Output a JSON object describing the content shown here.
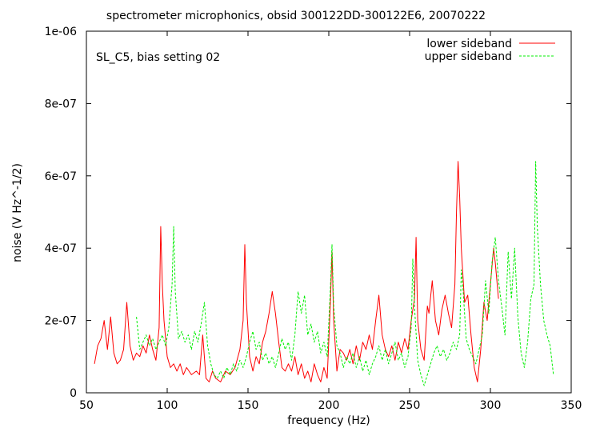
{
  "chart_data": {
    "type": "line",
    "title": "spectrometer microphonics, obsid 300122DD-300122E6, 20070222",
    "annotation": "SL_C5, bias setting 02",
    "xlabel": "frequency (Hz)",
    "ylabel": "noise (V Hz^-1/2)",
    "xlim": [
      50,
      350
    ],
    "ylim": [
      0,
      1e-06
    ],
    "x_ticks": [
      {
        "value": 50,
        "label": "50"
      },
      {
        "value": 100,
        "label": "100"
      },
      {
        "value": 150,
        "label": "150"
      },
      {
        "value": 200,
        "label": "200"
      },
      {
        "value": 250,
        "label": "250"
      },
      {
        "value": 300,
        "label": "300"
      },
      {
        "value": 350,
        "label": "350"
      }
    ],
    "y_ticks": [
      {
        "value": 0,
        "label": "0"
      },
      {
        "value": 2e-07,
        "label": "2e-07"
      },
      {
        "value": 4e-07,
        "label": "4e-07"
      },
      {
        "value": 6e-07,
        "label": "6e-07"
      },
      {
        "value": 8e-07,
        "label": "8e-07"
      },
      {
        "value": 1e-06,
        "label": "1e-06"
      }
    ],
    "grid": false,
    "legend_position": "top-right",
    "series": [
      {
        "name": "lower sideband",
        "color": "#ff0000",
        "dash": "solid",
        "points": [
          [
            55,
            8e-08
          ],
          [
            57,
            1.3e-07
          ],
          [
            59,
            1.5e-07
          ],
          [
            61,
            2e-07
          ],
          [
            63,
            1.2e-07
          ],
          [
            65,
            2.1e-07
          ],
          [
            67,
            1.1e-07
          ],
          [
            69,
            8e-08
          ],
          [
            71,
            9e-08
          ],
          [
            73,
            1.2e-07
          ],
          [
            75,
            2.5e-07
          ],
          [
            77,
            1.3e-07
          ],
          [
            79,
            9e-08
          ],
          [
            81,
            1.1e-07
          ],
          [
            83,
            1e-07
          ],
          [
            85,
            1.3e-07
          ],
          [
            87,
            1.1e-07
          ],
          [
            89,
            1.6e-07
          ],
          [
            91,
            1.2e-07
          ],
          [
            93,
            9e-08
          ],
          [
            95,
            1.8e-07
          ],
          [
            96,
            4.6e-07
          ],
          [
            97,
            3e-07
          ],
          [
            98,
            2e-07
          ],
          [
            100,
            1e-07
          ],
          [
            102,
            7e-08
          ],
          [
            104,
            8e-08
          ],
          [
            106,
            6e-08
          ],
          [
            108,
            8e-08
          ],
          [
            110,
            5e-08
          ],
          [
            112,
            7e-08
          ],
          [
            115,
            5e-08
          ],
          [
            118,
            6e-08
          ],
          [
            120,
            5e-08
          ],
          [
            122,
            1.6e-07
          ],
          [
            124,
            4e-08
          ],
          [
            126,
            3e-08
          ],
          [
            128,
            6e-08
          ],
          [
            130,
            4e-08
          ],
          [
            133,
            3e-08
          ],
          [
            136,
            6e-08
          ],
          [
            139,
            5e-08
          ],
          [
            142,
            7e-08
          ],
          [
            145,
            1.2e-07
          ],
          [
            147,
            2e-07
          ],
          [
            148,
            4.1e-07
          ],
          [
            149,
            2.5e-07
          ],
          [
            151,
            1e-07
          ],
          [
            153,
            6e-08
          ],
          [
            155,
            1e-07
          ],
          [
            157,
            8e-08
          ],
          [
            159,
            1.4e-07
          ],
          [
            161,
            1.7e-07
          ],
          [
            163,
            2.2e-07
          ],
          [
            165,
            2.8e-07
          ],
          [
            167,
            2.2e-07
          ],
          [
            169,
            1.4e-07
          ],
          [
            171,
            7e-08
          ],
          [
            173,
            6e-08
          ],
          [
            175,
            8e-08
          ],
          [
            177,
            6e-08
          ],
          [
            179,
            1e-07
          ],
          [
            181,
            5e-08
          ],
          [
            183,
            8e-08
          ],
          [
            185,
            4e-08
          ],
          [
            187,
            6e-08
          ],
          [
            189,
            3e-08
          ],
          [
            191,
            8e-08
          ],
          [
            193,
            5e-08
          ],
          [
            195,
            3e-08
          ],
          [
            197,
            7e-08
          ],
          [
            199,
            4e-08
          ],
          [
            201,
            2.5e-07
          ],
          [
            202,
            3.9e-07
          ],
          [
            203,
            2e-07
          ],
          [
            205,
            6e-08
          ],
          [
            207,
            1.2e-07
          ],
          [
            209,
            1.1e-07
          ],
          [
            211,
            9e-08
          ],
          [
            213,
            1.2e-07
          ],
          [
            215,
            8e-08
          ],
          [
            217,
            1.3e-07
          ],
          [
            219,
            9e-08
          ],
          [
            221,
            1.4e-07
          ],
          [
            223,
            1.2e-07
          ],
          [
            225,
            1.6e-07
          ],
          [
            227,
            1.2e-07
          ],
          [
            229,
            2e-07
          ],
          [
            231,
            2.7e-07
          ],
          [
            233,
            1.6e-07
          ],
          [
            235,
            1.2e-07
          ],
          [
            237,
            1e-07
          ],
          [
            239,
            1.3e-07
          ],
          [
            241,
            9e-08
          ],
          [
            243,
            1.4e-07
          ],
          [
            245,
            1.1e-07
          ],
          [
            247,
            1.5e-07
          ],
          [
            249,
            1.2e-07
          ],
          [
            251,
            2e-07
          ],
          [
            253,
            2.6e-07
          ],
          [
            254,
            4.3e-07
          ],
          [
            255,
            2e-07
          ],
          [
            257,
            1.2e-07
          ],
          [
            259,
            9e-08
          ],
          [
            261,
            2.4e-07
          ],
          [
            262,
            2.2e-07
          ],
          [
            264,
            3.1e-07
          ],
          [
            266,
            2e-07
          ],
          [
            268,
            1.6e-07
          ],
          [
            270,
            2.3e-07
          ],
          [
            272,
            2.7e-07
          ],
          [
            274,
            2.2e-07
          ],
          [
            276,
            1.8e-07
          ],
          [
            278,
            3e-07
          ],
          [
            279,
            5e-07
          ],
          [
            280,
            6.4e-07
          ],
          [
            281,
            5.4e-07
          ],
          [
            282,
            4e-07
          ],
          [
            284,
            2.5e-07
          ],
          [
            286,
            2.7e-07
          ],
          [
            288,
            1.6e-07
          ],
          [
            290,
            7e-08
          ],
          [
            292,
            3e-08
          ],
          [
            294,
            1.2e-07
          ],
          [
            296,
            2.5e-07
          ],
          [
            298,
            2e-07
          ],
          [
            300,
            3e-07
          ],
          [
            302,
            4e-07
          ],
          [
            303,
            3.6e-07
          ],
          [
            305,
            2.6e-07
          ]
        ]
      },
      {
        "name": "upper sideband",
        "color": "#00ee00",
        "dash": "dashed",
        "points": [
          [
            81,
            2.1e-07
          ],
          [
            83,
            1.2e-07
          ],
          [
            85,
            1.4e-07
          ],
          [
            87,
            1.6e-07
          ],
          [
            89,
            1.3e-07
          ],
          [
            91,
            1.5e-07
          ],
          [
            93,
            1.2e-07
          ],
          [
            95,
            1.4e-07
          ],
          [
            97,
            1.6e-07
          ],
          [
            99,
            1.3e-07
          ],
          [
            101,
            1.8e-07
          ],
          [
            103,
            3e-07
          ],
          [
            104,
            4.6e-07
          ],
          [
            105,
            2.8e-07
          ],
          [
            107,
            1.5e-07
          ],
          [
            109,
            1.7e-07
          ],
          [
            111,
            1.4e-07
          ],
          [
            113,
            1.6e-07
          ],
          [
            115,
            1.2e-07
          ],
          [
            117,
            1.7e-07
          ],
          [
            119,
            1.4e-07
          ],
          [
            121,
            1.9e-07
          ],
          [
            123,
            2.5e-07
          ],
          [
            125,
            1.3e-07
          ],
          [
            127,
            8e-08
          ],
          [
            129,
            5e-08
          ],
          [
            131,
            4e-08
          ],
          [
            133,
            6e-08
          ],
          [
            135,
            4e-08
          ],
          [
            137,
            7e-08
          ],
          [
            139,
            5e-08
          ],
          [
            141,
            8e-08
          ],
          [
            143,
            6e-08
          ],
          [
            145,
            9e-08
          ],
          [
            147,
            7e-08
          ],
          [
            149,
            1e-07
          ],
          [
            151,
            1.4e-07
          ],
          [
            153,
            1.7e-07
          ],
          [
            155,
            1.2e-07
          ],
          [
            157,
            1.4e-07
          ],
          [
            159,
            9e-08
          ],
          [
            161,
            1.1e-07
          ],
          [
            163,
            8e-08
          ],
          [
            165,
            1e-07
          ],
          [
            167,
            7e-08
          ],
          [
            169,
            1.1e-07
          ],
          [
            171,
            1.5e-07
          ],
          [
            173,
            1.2e-07
          ],
          [
            175,
            1.4e-07
          ],
          [
            177,
            9e-08
          ],
          [
            179,
            1.6e-07
          ],
          [
            181,
            2.8e-07
          ],
          [
            183,
            2.2e-07
          ],
          [
            185,
            2.7e-07
          ],
          [
            187,
            1.6e-07
          ],
          [
            189,
            1.9e-07
          ],
          [
            191,
            1.4e-07
          ],
          [
            193,
            1.7e-07
          ],
          [
            195,
            1.1e-07
          ],
          [
            197,
            1.4e-07
          ],
          [
            199,
            1e-07
          ],
          [
            201,
            2.9e-07
          ],
          [
            202,
            4.1e-07
          ],
          [
            203,
            2.4e-07
          ],
          [
            205,
            1.3e-07
          ],
          [
            207,
            1.1e-07
          ],
          [
            209,
            7e-08
          ],
          [
            211,
            1e-07
          ],
          [
            213,
            8e-08
          ],
          [
            215,
            1.1e-07
          ],
          [
            217,
            7e-08
          ],
          [
            219,
            1e-07
          ],
          [
            221,
            6e-08
          ],
          [
            223,
            9e-08
          ],
          [
            225,
            5e-08
          ],
          [
            227,
            8e-08
          ],
          [
            229,
            1e-07
          ],
          [
            231,
            1.3e-07
          ],
          [
            233,
            9e-08
          ],
          [
            235,
            1.2e-07
          ],
          [
            237,
            8e-08
          ],
          [
            239,
            1.1e-07
          ],
          [
            241,
            1.4e-07
          ],
          [
            243,
            9e-08
          ],
          [
            245,
            1.1e-07
          ],
          [
            247,
            7e-08
          ],
          [
            249,
            1e-07
          ],
          [
            251,
            1.8e-07
          ],
          [
            252,
            3.7e-07
          ],
          [
            253,
            2.4e-07
          ],
          [
            255,
            9e-08
          ],
          [
            257,
            5e-08
          ],
          [
            259,
            2e-08
          ],
          [
            261,
            5e-08
          ],
          [
            263,
            8e-08
          ],
          [
            265,
            1.1e-07
          ],
          [
            267,
            1.3e-07
          ],
          [
            269,
            1e-07
          ],
          [
            271,
            1.2e-07
          ],
          [
            273,
            9e-08
          ],
          [
            275,
            1.1e-07
          ],
          [
            277,
            1.4e-07
          ],
          [
            279,
            1.2e-07
          ],
          [
            281,
            1.6e-07
          ],
          [
            282,
            3.4e-07
          ],
          [
            283,
            2.9e-07
          ],
          [
            285,
            1.5e-07
          ],
          [
            287,
            1.2e-07
          ],
          [
            289,
            1e-07
          ],
          [
            291,
            8e-08
          ],
          [
            293,
            1.2e-07
          ],
          [
            295,
            1.6e-07
          ],
          [
            297,
            3.1e-07
          ],
          [
            299,
            2.2e-07
          ],
          [
            301,
            3.6e-07
          ],
          [
            303,
            4.3e-07
          ],
          [
            305,
            3.1e-07
          ],
          [
            307,
            2.4e-07
          ],
          [
            309,
            1.6e-07
          ],
          [
            311,
            3.9e-07
          ],
          [
            313,
            2.6e-07
          ],
          [
            315,
            4e-07
          ],
          [
            317,
            2.1e-07
          ],
          [
            319,
            1.1e-07
          ],
          [
            321,
            7e-08
          ],
          [
            323,
            1.4e-07
          ],
          [
            325,
            2.6e-07
          ],
          [
            327,
            3e-07
          ],
          [
            328,
            6.4e-07
          ],
          [
            329,
            4.6e-07
          ],
          [
            331,
            3e-07
          ],
          [
            333,
            2e-07
          ],
          [
            335,
            1.6e-07
          ],
          [
            337,
            1.3e-07
          ],
          [
            339,
            5e-08
          ]
        ]
      }
    ]
  }
}
